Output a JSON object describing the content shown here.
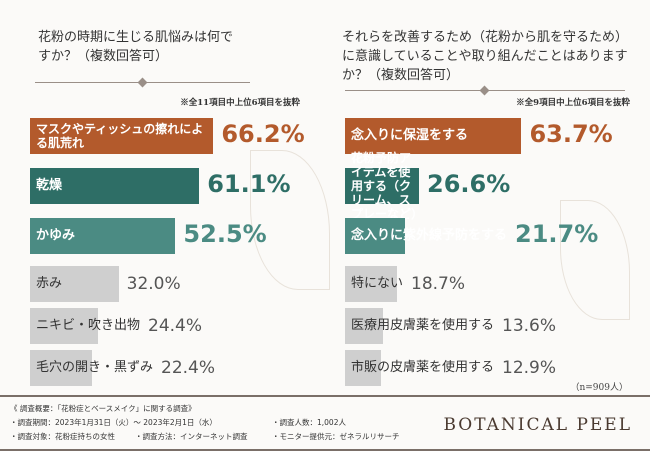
{
  "colors": {
    "orange": "#b35a2c",
    "teal_dark": "#2e6e66",
    "teal": "#4b8b83",
    "gray": "#cfcfcf"
  },
  "chart_data": [
    {
      "type": "bar",
      "orientation": "horizontal",
      "title": "花粉の時期に生じる肌悩みは何ですか？（複数回答可）",
      "note": "※全11項目中上位6項目を抜粋",
      "categories": [
        "マスクやティッシュの擦れによる肌荒れ",
        "乾燥",
        "かゆみ",
        "赤み",
        "ニキビ・吹き出物",
        "毛穴の開き・黒ずみ"
      ],
      "values": [
        66.2,
        61.1,
        52.5,
        32.0,
        24.4,
        22.4
      ],
      "labels": [
        "66.2%",
        "61.1%",
        "52.5%",
        "32.0%",
        "24.4%",
        "22.4%"
      ]
    },
    {
      "type": "bar",
      "orientation": "horizontal",
      "title": "それらを改善するため（花粉から肌を守るため）に意識していることや取り組んだことはありますか？（複数回答可）",
      "note": "※全9項目中上位6項目を抜粋",
      "categories": [
        "念入りに保湿をする",
        "花粉予防アイテムを使用する（クリーム、スプレーなど）",
        "念入りに紫外線予防をする",
        "特にない",
        "医療用皮膚薬を使用する",
        "市販の皮膚薬を使用する"
      ],
      "values": [
        63.7,
        26.6,
        21.7,
        18.7,
        13.6,
        12.9
      ],
      "labels": [
        "63.7%",
        "26.6%",
        "21.7%",
        "18.7%",
        "13.6%",
        "12.9%"
      ],
      "n": "（n=909人）"
    }
  ],
  "footer": {
    "title": "《 調査概要：「花粉症とベースメイク」に関する調査》",
    "period": "・調査期間：2023年1月31日（火）～ 2023年2月1日（水）",
    "count": "・調査人数：1,002人",
    "target": "・調査対象：花粉症持ちの女性",
    "method": "・調査方法：インターネット調査",
    "provider": "・モニター提供元：ゼネラルリサーチ",
    "brand": "BOTANICAL PEEL"
  }
}
